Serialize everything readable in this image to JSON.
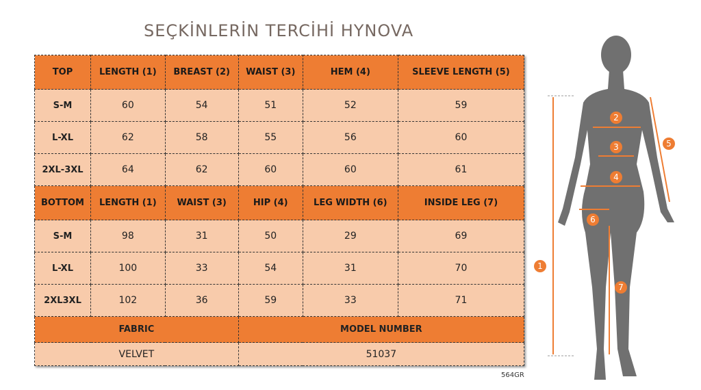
{
  "top": {
    "headers": [
      "TOP",
      "LENGTH (1)",
      "BREAST (2)",
      "WAIST (3)",
      "HEM (4)",
      "SLEEVE LENGTH (5)"
    ],
    "rows": [
      [
        "S-M",
        "60",
        "54",
        "51",
        "52",
        "59"
      ],
      [
        "L-XL",
        "62",
        "58",
        "55",
        "56",
        "60"
      ],
      [
        "2XL-3XL",
        "64",
        "62",
        "60",
        "60",
        "61"
      ]
    ]
  },
  "bottom": {
    "headers": [
      "BOTTOM",
      "LENGTH (1)",
      "WAIST (3)",
      "HIP (4)",
      "LEG WIDTH (6)",
      "INSIDE LEG (7)"
    ],
    "rows": [
      [
        "S-M",
        "98",
        "31",
        "50",
        "29",
        "69"
      ],
      [
        "L-XL",
        "100",
        "33",
        "54",
        "31",
        "70"
      ],
      [
        "2XL3XL",
        "102",
        "36",
        "59",
        "33",
        "71"
      ]
    ]
  },
  "fabric": {
    "label": "FABRIC",
    "value": "VELVET"
  },
  "model": {
    "label": "MODEL NUMBER",
    "value": "51037"
  },
  "watermark": "SEÇKİNLERİN TERCİHİ HYNOVA",
  "code": "564GR",
  "markers": [
    "1",
    "2",
    "3",
    "4",
    "5",
    "6",
    "7"
  ],
  "colors": {
    "header": "#ee7d33",
    "cell": "#f8cbab",
    "marker": "#ee7d33",
    "silhouette": "#707070"
  }
}
